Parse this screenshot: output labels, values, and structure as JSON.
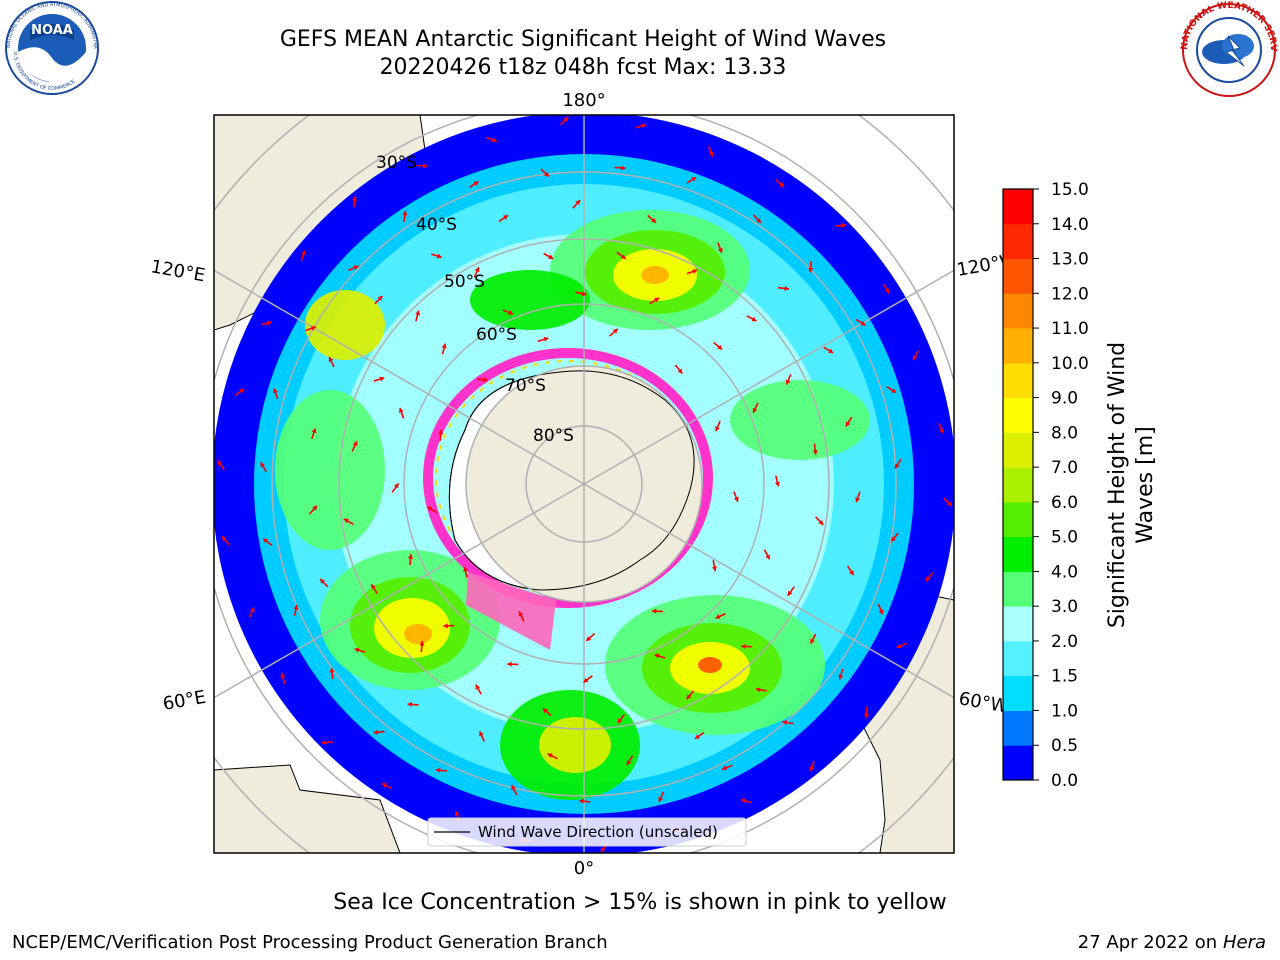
{
  "header": {
    "title_line1": "GEFS MEAN Antarctic Significant Height of Wind Waves",
    "title_line2": "20220426 t18z 048h fcst   Max: 13.33"
  },
  "logos": {
    "left": "noaa-logo",
    "left_text": "NOAA",
    "left_ring_top": "NATIONAL OCEANIC AND ATMOSPHERIC ADMINISTRATION",
    "left_ring_bottom": "U.S. DEPARTMENT OF COMMERCE",
    "right": "nws-logo",
    "right_ring": "NATIONAL WEATHER SERVICE"
  },
  "map": {
    "projection": "south-polar-stereographic",
    "longitude_labels": {
      "top": "180°",
      "bottom": "0°",
      "upper_left": "120°E",
      "upper_right": "120°W",
      "lower_left": "60°E",
      "lower_right": "60°W"
    },
    "latitude_labels": [
      "30°S",
      "40°S",
      "50°S",
      "60°S",
      "70°S",
      "80°S"
    ],
    "legend_label": "Wind Wave Direction (unscaled)",
    "arrow_color": "#ff0000",
    "land_color": "#efecdc",
    "ice_colors": [
      "#ff33cc",
      "#ffd700"
    ]
  },
  "colorbar": {
    "label_line1": "Significant Height of Wind",
    "label_line2": "Waves [m]",
    "ticks": [
      "0.0",
      "0.5",
      "1.0",
      "1.5",
      "2.0",
      "3.0",
      "4.0",
      "5.0",
      "6.0",
      "7.0",
      "8.0",
      "9.0",
      "10.0",
      "11.0",
      "12.0",
      "13.0",
      "14.0",
      "15.0"
    ],
    "colors": [
      "#0000ff",
      "#0077ff",
      "#00ddff",
      "#55f0ff",
      "#aaffff",
      "#55ff77",
      "#00ee00",
      "#55ee00",
      "#aaee00",
      "#ddf000",
      "#ffff00",
      "#ffdd00",
      "#ffb000",
      "#ff8800",
      "#ff5500",
      "#ff2800",
      "#ff0000"
    ]
  },
  "footer": {
    "sea_ice_note": "Sea Ice Concentration > 15% is shown in pink to yellow",
    "branch": "NCEP/EMC/Verification Post Processing Product Generation Branch",
    "date": "27 Apr 2022 on ",
    "host": "Hera"
  }
}
